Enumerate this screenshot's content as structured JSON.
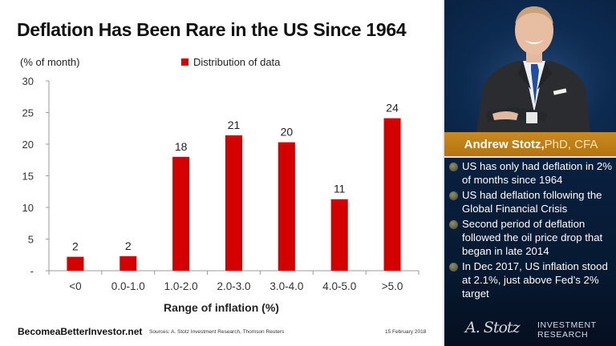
{
  "title": "Deflation Has Been Rare in the US Since 1964",
  "chart_data": {
    "type": "bar",
    "title": "Deflation Has Been Rare in the US Since 1964",
    "ylabel": "(% of month)",
    "xlabel": "Range of inflation (%)",
    "categories": [
      "<0",
      "0.0-1.0",
      "1.0-2.0",
      "2.0-3.0",
      "3.0-4.0",
      "4.0-5.0",
      ">5.0"
    ],
    "series": [
      {
        "name": "Distribution of data",
        "values": [
          2.2,
          2.3,
          18,
          21.4,
          20.3,
          11.3,
          24.1
        ],
        "labels": [
          "2",
          "2",
          "18",
          "21",
          "20",
          "11",
          "24"
        ],
        "color": "#d40000"
      }
    ],
    "ylim": [
      0,
      30
    ],
    "yticks": [
      0,
      5,
      10,
      15,
      20,
      25,
      30
    ],
    "ytick_labels": [
      "-",
      "5",
      "10",
      "15",
      "20",
      "25",
      "30"
    ],
    "grid": false,
    "legend": "top-center"
  },
  "legend_label": "Distribution of data",
  "footer": {
    "site": "BecomeaBetterInvestor.net",
    "sources": "Sources: A. Stotz Investment Research, Thomson Reuters",
    "date": "15 February 2018"
  },
  "sidebar": {
    "name": "Andrew Stotz,",
    "credentials": " PhD, CFA",
    "bullets": [
      "US has only had deflation in 2% of months since 1964",
      "US had deflation following the Global Financial Crisis",
      "Second period of deflation followed the oil price drop that began in late 2014",
      "In Dec 2017, US inflation stood at 2.1%, just above Fed’s 2% target"
    ],
    "signature": "A. Stotz",
    "brand_line1": "INVESTMENT",
    "brand_line2": "RESEARCH"
  }
}
